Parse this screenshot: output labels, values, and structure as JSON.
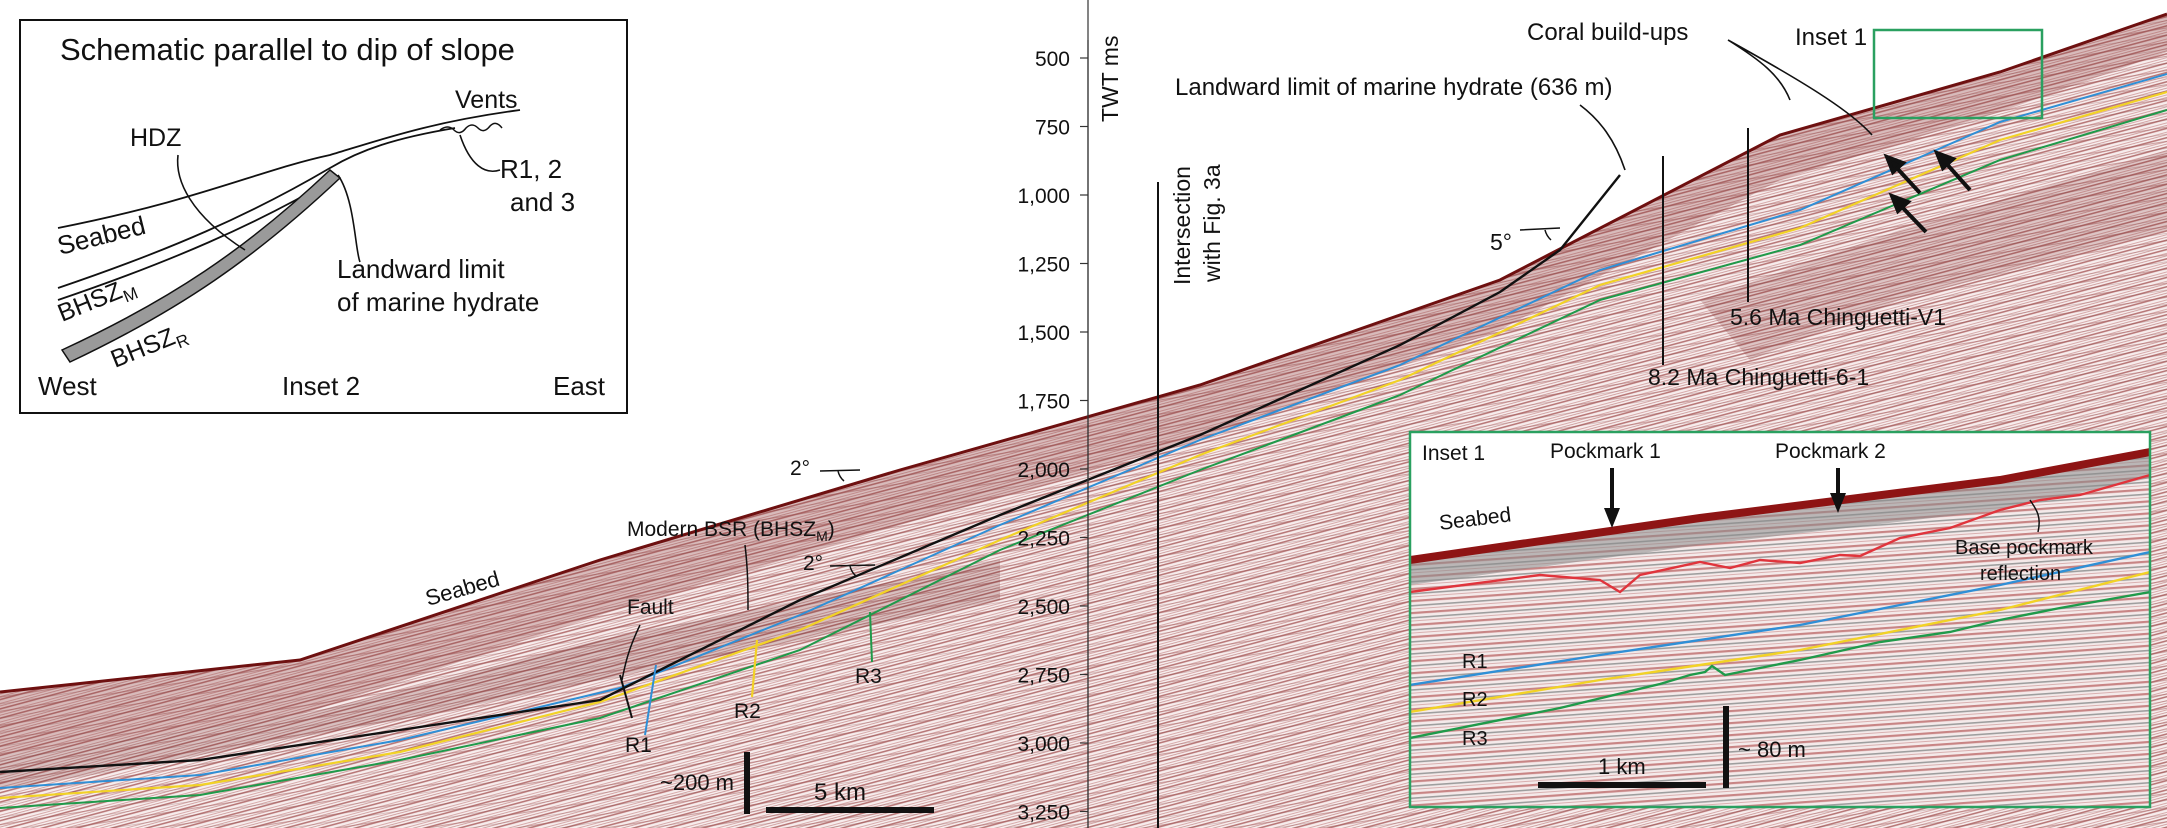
{
  "colors": {
    "seismic_dark": "#7a1f1f",
    "seismic_mid": "#b86a6a",
    "seismic_light": "#e7c9c9",
    "r1": "#2f8fd6",
    "r2": "#f2d226",
    "r3": "#1f9a4a",
    "bsr": "#111111",
    "base_pockmark": "#e0343c",
    "inset_frame": "#2aa060"
  },
  "schematic": {
    "title": "Schematic parallel to dip of slope",
    "vents": "Vents",
    "hdz": "HDZ",
    "seabed": "Seabed",
    "r123_line1": "R1, 2",
    "r123_line2": "and 3",
    "bhsz_m": "BHSZ",
    "bhsz_m_sub": "M",
    "bhsz_r": "BHSZ",
    "bhsz_r_sub": "R",
    "landward_line1": "Landward limit",
    "landward_line2": "of marine hydrate",
    "west": "West",
    "inset2": "Inset 2",
    "east": "East"
  },
  "axis": {
    "title": "TWT ms",
    "ticks": [
      "500",
      "750",
      "1,000",
      "1,250",
      "1,500",
      "1,750",
      "2,000",
      "2,250",
      "2,500",
      "2,750",
      "3,000",
      "3,250"
    ]
  },
  "annotations": {
    "coral": "Coral build-ups",
    "inset1": "Inset 1",
    "landward_limit": "Landward limit of marine hydrate (636 m)",
    "intersection_line1": "Intersection",
    "intersection_line2": "with Fig. 3a",
    "five_deg": "5°",
    "well_v1": "5.6 Ma Chinguetti-V1",
    "well_61": "8.2 Ma Chinguetti-6-1",
    "two_deg_upper": "2°",
    "two_deg_lower": "2°",
    "modern_bsr": "Modern BSR (BHSZ",
    "modern_bsr_sub": "M",
    "modern_bsr_end": ")",
    "seabed": "Seabed",
    "fault": "Fault",
    "r1": "R1",
    "r2": "R2",
    "r3": "R3",
    "scale_vertical": "~200 m",
    "scale_horizontal": "5 km"
  },
  "inset": {
    "label": "Inset 1",
    "pockmark1": "Pockmark 1",
    "pockmark2": "Pockmark 2",
    "seabed": "Seabed",
    "base_line1": "Base pockmark",
    "base_line2": "reflection",
    "r1": "R1",
    "r2": "R2",
    "r3": "R3",
    "scale_horizontal": "1 km",
    "scale_vertical": "~ 80 m"
  }
}
